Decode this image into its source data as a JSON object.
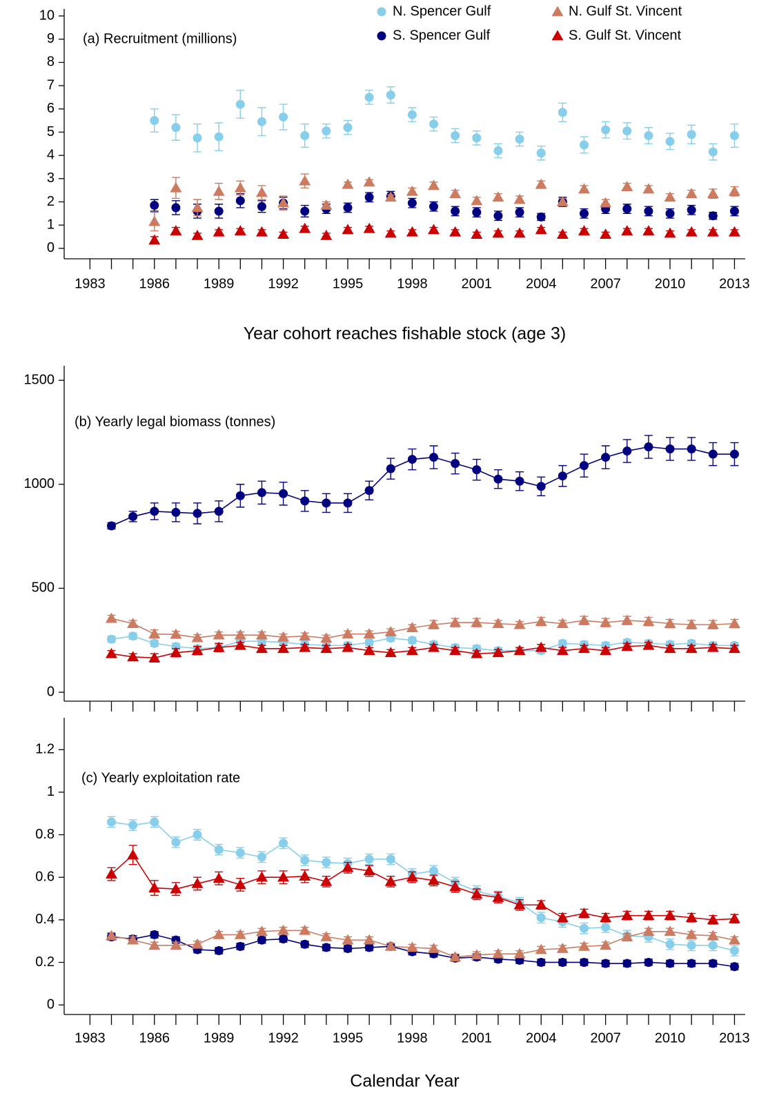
{
  "chart_data": [
    {
      "type": "scatter",
      "title": "(a) Recruitment (millions)",
      "xlabel": "Year cohort reaches fishable stock (age 3)",
      "legend": "upper right",
      "x": [
        1986,
        1987,
        1988,
        1989,
        1990,
        1991,
        1992,
        1993,
        1994,
        1995,
        1996,
        1997,
        1998,
        1999,
        2000,
        2001,
        2002,
        2003,
        2004,
        2005,
        2006,
        2007,
        2008,
        2009,
        2010,
        2011,
        2012,
        2013
      ],
      "xlim": [
        1981.8,
        2013.5
      ],
      "xticks": [
        1983,
        1986,
        1989,
        1992,
        1995,
        1998,
        2001,
        2004,
        2007,
        2010,
        2013
      ],
      "xminorticks": [
        1984,
        1985,
        1987,
        1988,
        1990,
        1991,
        1993,
        1994,
        1996,
        1997,
        1999,
        2000,
        2002,
        2003,
        2005,
        2006,
        2008,
        2009,
        2011,
        2012
      ],
      "ylim": [
        -0.45,
        10.3
      ],
      "yticks": [
        0,
        1,
        2,
        3,
        4,
        5,
        6,
        7,
        8,
        9,
        10
      ],
      "series": [
        {
          "name": "N. Spencer Gulf",
          "color": "#87ceeb",
          "marker": "circle",
          "values": [
            5.5,
            5.2,
            4.75,
            4.8,
            6.2,
            5.45,
            5.65,
            4.85,
            5.05,
            5.2,
            6.5,
            6.6,
            5.75,
            5.35,
            4.85,
            4.75,
            4.2,
            4.7,
            4.1,
            5.85,
            4.45,
            5.1,
            5.05,
            4.85,
            4.6,
            4.9,
            4.15,
            4.85
          ],
          "errors": [
            0.5,
            0.55,
            0.6,
            0.6,
            0.6,
            0.6,
            0.55,
            0.5,
            0.3,
            0.3,
            0.3,
            0.35,
            0.3,
            0.3,
            0.3,
            0.3,
            0.3,
            0.3,
            0.3,
            0.4,
            0.35,
            0.35,
            0.35,
            0.35,
            0.35,
            0.4,
            0.35,
            0.5
          ]
        },
        {
          "name": "S. Spencer Gulf",
          "color": "#000080",
          "marker": "circle",
          "values": [
            1.85,
            1.75,
            1.6,
            1.6,
            2.05,
            1.8,
            1.95,
            1.6,
            1.7,
            1.75,
            2.2,
            2.25,
            1.95,
            1.8,
            1.6,
            1.55,
            1.4,
            1.55,
            1.35,
            2.0,
            1.5,
            1.7,
            1.7,
            1.6,
            1.5,
            1.65,
            1.4,
            1.6
          ],
          "errors": [
            0.25,
            0.3,
            0.3,
            0.3,
            0.3,
            0.25,
            0.25,
            0.25,
            0.2,
            0.2,
            0.2,
            0.2,
            0.2,
            0.2,
            0.2,
            0.2,
            0.2,
            0.2,
            0.15,
            0.2,
            0.2,
            0.2,
            0.2,
            0.2,
            0.2,
            0.2,
            0.15,
            0.2
          ]
        },
        {
          "name": "N. Gulf St. Vincent",
          "color": "#cc7a60",
          "marker": "triangle",
          "values": [
            1.15,
            2.6,
            1.75,
            2.45,
            2.6,
            2.4,
            1.95,
            2.9,
            1.85,
            2.75,
            2.85,
            2.2,
            2.45,
            2.7,
            2.35,
            2.05,
            2.2,
            2.1,
            2.75,
            2.0,
            2.55,
            1.95,
            2.65,
            2.55,
            2.2,
            2.35,
            2.35,
            2.45
          ],
          "errors": [
            0.4,
            0.45,
            0.35,
            0.35,
            0.3,
            0.3,
            0.3,
            0.3,
            0.15,
            0.1,
            0.1,
            0.1,
            0.15,
            0.15,
            0.15,
            0.15,
            0.15,
            0.15,
            0.15,
            0.15,
            0.15,
            0.15,
            0.15,
            0.15,
            0.15,
            0.15,
            0.2,
            0.2
          ]
        },
        {
          "name": "S. Gulf St. Vincent",
          "color": "#cc0000",
          "marker": "triangle",
          "values": [
            0.35,
            0.75,
            0.55,
            0.7,
            0.75,
            0.7,
            0.6,
            0.85,
            0.55,
            0.8,
            0.85,
            0.65,
            0.7,
            0.8,
            0.7,
            0.6,
            0.65,
            0.65,
            0.8,
            0.6,
            0.75,
            0.6,
            0.75,
            0.75,
            0.65,
            0.7,
            0.7,
            0.7
          ],
          "errors": [
            0.15,
            0.15,
            0.1,
            0.1,
            0.1,
            0.1,
            0.1,
            0.1,
            0.1,
            0.1,
            0.1,
            0.1,
            0.1,
            0.1,
            0.1,
            0.1,
            0.1,
            0.1,
            0.1,
            0.1,
            0.1,
            0.1,
            0.1,
            0.1,
            0.1,
            0.1,
            0.1,
            0.1
          ]
        }
      ]
    },
    {
      "type": "line",
      "title": "(b) Yearly legal biomass (tonnes)",
      "x": [
        1984,
        1985,
        1986,
        1987,
        1988,
        1989,
        1990,
        1991,
        1992,
        1993,
        1994,
        1995,
        1996,
        1997,
        1998,
        1999,
        2000,
        2001,
        2002,
        2003,
        2004,
        2005,
        2006,
        2007,
        2008,
        2009,
        2010,
        2011,
        2012,
        2013
      ],
      "xlim": [
        1981.8,
        2013.5
      ],
      "xminorticks": [
        1983,
        1984,
        1985,
        1986,
        1987,
        1988,
        1989,
        1990,
        1991,
        1992,
        1993,
        1994,
        1995,
        1996,
        1997,
        1998,
        1999,
        2000,
        2001,
        2002,
        2003,
        2004,
        2005,
        2006,
        2007,
        2008,
        2009,
        2010,
        2011,
        2012,
        2013
      ],
      "ylim": [
        -43,
        1570
      ],
      "yticks": [
        0,
        500,
        1000,
        1500
      ],
      "series": [
        {
          "color": "#87ceeb",
          "marker": "circle",
          "values": [
            255,
            270,
            235,
            220,
            210,
            215,
            245,
            245,
            240,
            230,
            225,
            225,
            240,
            260,
            250,
            230,
            215,
            210,
            200,
            200,
            200,
            235,
            230,
            225,
            240,
            235,
            230,
            235,
            225,
            225
          ],
          "errors": [
            15,
            15,
            15,
            15,
            15,
            15,
            15,
            15,
            15,
            15,
            15,
            15,
            15,
            15,
            15,
            15,
            15,
            15,
            15,
            15,
            15,
            15,
            15,
            15,
            15,
            15,
            15,
            15,
            15,
            15
          ]
        },
        {
          "color": "#000080",
          "marker": "circle",
          "values": [
            800,
            845,
            870,
            865,
            860,
            870,
            945,
            960,
            955,
            920,
            910,
            910,
            970,
            1075,
            1120,
            1130,
            1100,
            1070,
            1025,
            1015,
            990,
            1040,
            1090,
            1130,
            1160,
            1180,
            1170,
            1170,
            1145,
            1145
          ],
          "errors": [
            15,
            25,
            40,
            45,
            50,
            50,
            55,
            55,
            55,
            50,
            45,
            45,
            45,
            50,
            50,
            55,
            50,
            50,
            45,
            45,
            45,
            50,
            55,
            55,
            55,
            55,
            55,
            55,
            55,
            55
          ]
        },
        {
          "color": "#cc7a60",
          "marker": "triangle",
          "values": [
            355,
            330,
            280,
            278,
            262,
            275,
            275,
            275,
            265,
            270,
            260,
            280,
            280,
            290,
            310,
            325,
            335,
            335,
            330,
            325,
            340,
            330,
            345,
            335,
            345,
            340,
            330,
            325,
            325,
            330
          ],
          "errors": [
            15,
            15,
            20,
            15,
            15,
            15,
            15,
            15,
            15,
            15,
            15,
            15,
            15,
            15,
            15,
            20,
            20,
            20,
            15,
            15,
            20,
            15,
            20,
            20,
            20,
            20,
            20,
            20,
            20,
            20
          ]
        },
        {
          "color": "#cc0000",
          "marker": "triangle",
          "values": [
            185,
            170,
            165,
            190,
            200,
            215,
            225,
            210,
            210,
            215,
            210,
            215,
            200,
            190,
            200,
            215,
            200,
            185,
            190,
            200,
            215,
            200,
            210,
            200,
            220,
            225,
            210,
            210,
            215,
            210
          ],
          "errors": [
            15,
            15,
            20,
            20,
            20,
            20,
            15,
            15,
            15,
            15,
            15,
            15,
            15,
            15,
            15,
            15,
            15,
            15,
            15,
            15,
            15,
            15,
            15,
            15,
            15,
            15,
            15,
            15,
            15,
            15
          ]
        }
      ]
    },
    {
      "type": "line",
      "title": "(c) Yearly exploitation rate",
      "xlabel": "Calendar Year",
      "x": [
        1984,
        1985,
        1986,
        1987,
        1988,
        1989,
        1990,
        1991,
        1992,
        1993,
        1994,
        1995,
        1996,
        1997,
        1998,
        1999,
        2000,
        2001,
        2002,
        2003,
        2004,
        2005,
        2006,
        2007,
        2008,
        2009,
        2010,
        2011,
        2012,
        2013
      ],
      "xlim": [
        1981.8,
        2013.5
      ],
      "xticks": [
        1983,
        1986,
        1989,
        1992,
        1995,
        1998,
        2001,
        2004,
        2007,
        2010,
        2013
      ],
      "xminorticks": [
        1984,
        1985,
        1987,
        1988,
        1990,
        1991,
        1993,
        1994,
        1996,
        1997,
        1999,
        2000,
        2002,
        2003,
        2005,
        2006,
        2008,
        2009,
        2011,
        2012
      ],
      "ylim": [
        -0.045,
        1.35
      ],
      "yticks": [
        0,
        0.2,
        0.4,
        0.6,
        0.8,
        1,
        1.2
      ],
      "series": [
        {
          "color": "#87ceeb",
          "marker": "circle",
          "values": [
            0.86,
            0.845,
            0.86,
            0.765,
            0.8,
            0.73,
            0.715,
            0.695,
            0.76,
            0.68,
            0.67,
            0.665,
            0.685,
            0.685,
            0.615,
            0.63,
            0.575,
            0.535,
            0.51,
            0.48,
            0.41,
            0.39,
            0.36,
            0.365,
            0.325,
            0.32,
            0.285,
            0.28,
            0.28,
            0.255
          ],
          "errors": [
            0.025,
            0.025,
            0.025,
            0.025,
            0.025,
            0.025,
            0.025,
            0.025,
            0.025,
            0.025,
            0.025,
            0.025,
            0.025,
            0.025,
            0.025,
            0.025,
            0.025,
            0.025,
            0.025,
            0.025,
            0.025,
            0.025,
            0.025,
            0.025,
            0.025,
            0.025,
            0.025,
            0.025,
            0.025,
            0.025
          ]
        },
        {
          "color": "#000080",
          "marker": "circle",
          "values": [
            0.32,
            0.31,
            0.33,
            0.305,
            0.26,
            0.255,
            0.275,
            0.305,
            0.31,
            0.285,
            0.27,
            0.265,
            0.27,
            0.275,
            0.25,
            0.24,
            0.22,
            0.225,
            0.215,
            0.21,
            0.2,
            0.2,
            0.2,
            0.195,
            0.195,
            0.2,
            0.195,
            0.195,
            0.195,
            0.18
          ],
          "errors": [
            0.015,
            0.015,
            0.015,
            0.015,
            0.015,
            0.015,
            0.015,
            0.015,
            0.015,
            0.015,
            0.015,
            0.015,
            0.015,
            0.015,
            0.015,
            0.015,
            0.015,
            0.015,
            0.015,
            0.015,
            0.015,
            0.015,
            0.015,
            0.015,
            0.015,
            0.015,
            0.015,
            0.015,
            0.015,
            0.015
          ]
        },
        {
          "color": "#cc7a60",
          "marker": "triangle",
          "values": [
            0.325,
            0.305,
            0.28,
            0.28,
            0.285,
            0.33,
            0.33,
            0.345,
            0.35,
            0.35,
            0.32,
            0.305,
            0.305,
            0.275,
            0.27,
            0.265,
            0.225,
            0.235,
            0.24,
            0.24,
            0.26,
            0.265,
            0.275,
            0.28,
            0.32,
            0.345,
            0.345,
            0.33,
            0.325,
            0.305
          ],
          "errors": [
            0.015,
            0.015,
            0.015,
            0.015,
            0.015,
            0.015,
            0.015,
            0.015,
            0.015,
            0.015,
            0.015,
            0.015,
            0.015,
            0.015,
            0.015,
            0.015,
            0.015,
            0.015,
            0.015,
            0.015,
            0.015,
            0.015,
            0.015,
            0.015,
            0.015,
            0.015,
            0.015,
            0.015,
            0.015,
            0.015
          ]
        },
        {
          "color": "#cc0000",
          "marker": "triangle",
          "values": [
            0.615,
            0.705,
            0.55,
            0.545,
            0.57,
            0.595,
            0.565,
            0.6,
            0.6,
            0.605,
            0.58,
            0.645,
            0.63,
            0.58,
            0.6,
            0.585,
            0.555,
            0.52,
            0.505,
            0.47,
            0.47,
            0.41,
            0.43,
            0.41,
            0.42,
            0.42,
            0.42,
            0.41,
            0.4,
            0.405
          ],
          "errors": [
            0.03,
            0.045,
            0.035,
            0.03,
            0.03,
            0.03,
            0.03,
            0.03,
            0.03,
            0.03,
            0.025,
            0.025,
            0.025,
            0.025,
            0.025,
            0.025,
            0.025,
            0.025,
            0.025,
            0.025,
            0.02,
            0.02,
            0.02,
            0.02,
            0.02,
            0.02,
            0.02,
            0.02,
            0.02,
            0.02
          ]
        }
      ]
    }
  ]
}
